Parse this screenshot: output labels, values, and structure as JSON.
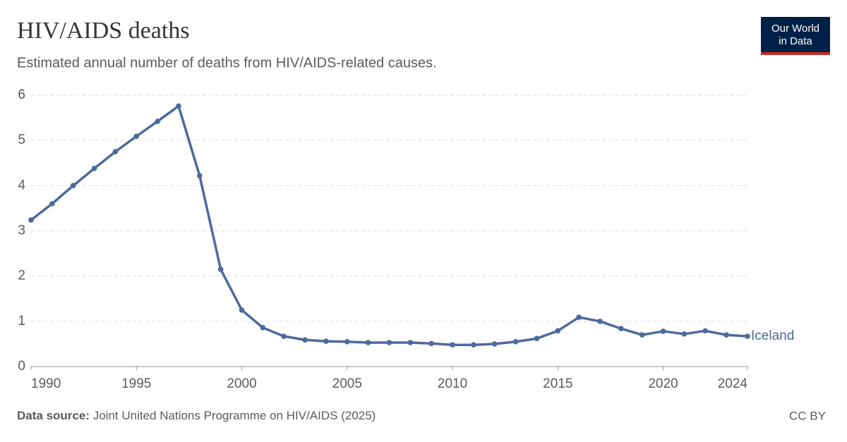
{
  "chart_data": {
    "type": "line",
    "title": "HIV/AIDS deaths",
    "subtitle": "Estimated annual number of deaths from HIV/AIDS-related causes.",
    "logo": [
      "Our World",
      "in Data"
    ],
    "source_label": "Data source:",
    "source": "Joint United Nations Programme on HIV/AIDS (2025)",
    "license": "CC BY",
    "x": [
      1990,
      1991,
      1992,
      1993,
      1994,
      1995,
      1996,
      1997,
      1998,
      1999,
      2000,
      2001,
      2002,
      2003,
      2004,
      2005,
      2006,
      2007,
      2008,
      2009,
      2010,
      2011,
      2012,
      2013,
      2014,
      2015,
      2016,
      2017,
      2018,
      2019,
      2020,
      2021,
      2022,
      2023,
      2024
    ],
    "series": [
      {
        "name": "Iceland",
        "color": "#4c6a9c",
        "values": [
          3.24,
          3.6,
          4.0,
          4.38,
          4.75,
          5.09,
          5.42,
          5.76,
          4.22,
          2.15,
          1.25,
          0.86,
          0.67,
          0.59,
          0.56,
          0.55,
          0.53,
          0.53,
          0.53,
          0.51,
          0.48,
          0.48,
          0.5,
          0.55,
          0.62,
          0.79,
          1.09,
          1.0,
          0.84,
          0.7,
          0.78,
          0.72,
          0.79,
          0.7,
          0.67
        ]
      }
    ],
    "xlim": [
      1990,
      2024
    ],
    "ylim": [
      0,
      6
    ],
    "xticks": [
      1990,
      1995,
      2000,
      2005,
      2010,
      2015,
      2020,
      2024
    ],
    "yticks": [
      0,
      1,
      2,
      3,
      4,
      5,
      6
    ],
    "grid": true
  }
}
